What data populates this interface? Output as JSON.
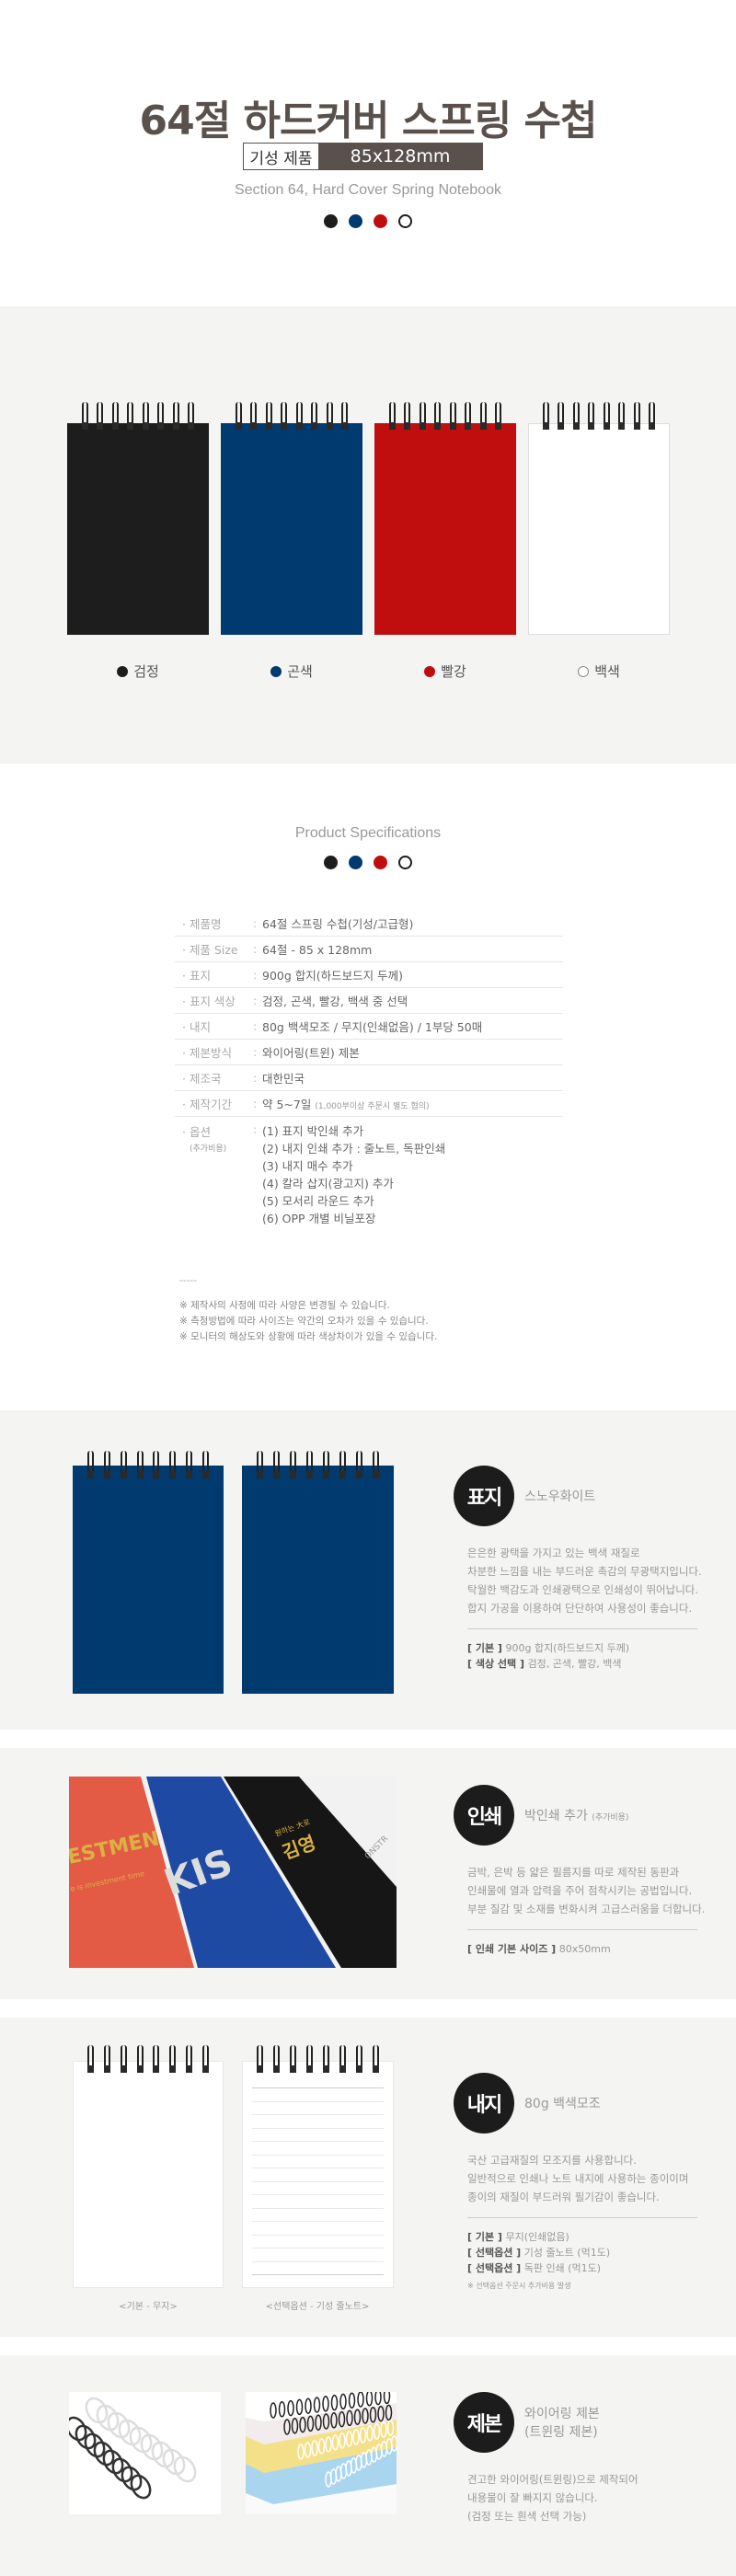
{
  "header": {
    "title": "64절 하드커버 스프링 수첩",
    "badge_type": "기성 제품",
    "badge_size": "85x128mm",
    "subtitle": "Section 64, Hard Cover Spring Notebook"
  },
  "colors": {
    "black": "#1d1d1d",
    "navy": "#003a6e",
    "red": "#c00d0e",
    "white": "#ffffff",
    "title": "#5a514d"
  },
  "color_options": [
    {
      "label": "검정",
      "color": "#1d1d1d"
    },
    {
      "label": "곤색",
      "color": "#003a6e"
    },
    {
      "label": "빨강",
      "color": "#c00d0e"
    },
    {
      "label": "백색",
      "color": "#ffffff"
    }
  ],
  "specs": {
    "title": "Product Specifications",
    "rows": [
      {
        "key": "제품명",
        "value": "64절 스프링 수첩(기성/고급형)"
      },
      {
        "key": "제품 Size",
        "value": "64절 - 85 x 128mm"
      },
      {
        "key": "표지",
        "value": "900g 합지(하드보드지 두께)"
      },
      {
        "key": "표지 색상",
        "value": "검정, 곤색, 빨강, 백색 중 선택"
      },
      {
        "key": "내지",
        "value": "80g 백색모조 / 무지(인쇄없음) / 1부당 50매"
      },
      {
        "key": "제본방식",
        "value": "와이어링(트윈) 제본"
      },
      {
        "key": "제조국",
        "value": "대한민국"
      },
      {
        "key": "제작기간",
        "value": "약 5~7일",
        "note": "(1,000부이상 주문시 별도 협의)"
      }
    ],
    "options_key": "옵션",
    "options_note": "(추가비용)",
    "options": [
      "(1) 표지 박인쇄 추가",
      "(2) 내지 인쇄 추가 : 줄노트, 독판인쇄",
      "(3) 내지 매수 추가",
      "(4) 칼라 삽지(광고지) 추가",
      "(5) 모서리 라운드 추가",
      "(6) OPP 개별 비닐포장"
    ],
    "dash": "-----",
    "notes": [
      "※ 제작사의 사정에 따라 사양은 변경될 수 있습니다.",
      "※ 측정방법에 따라 사이즈는 약간의 오차가 있을 수 있습니다.",
      "※ 모니터의 해상도와 상황에 따라 색상차이가 있을 수 있습니다."
    ]
  },
  "cover": {
    "badge": "표지",
    "heading": "스노우화이트",
    "body": [
      "은은한 광택을 가지고 있는 백색 재질로",
      "차분한 느낌을 내는 부드러운 촉감의 무광택지입니다.",
      "탁월한 백감도과 인쇄광택으로 인쇄성이 뛰어납니다.",
      "합지 가공을 이용하여 단단하여 사용성이 좋습니다."
    ],
    "opts": [
      {
        "k": "[ 기본 ]",
        "v": "900g 합지(하드보드지 두께)"
      },
      {
        "k": "[ 색상 선택 ]",
        "v": "검정, 곤색, 빨강, 백색"
      }
    ]
  },
  "print": {
    "badge": "인쇄",
    "heading": "박인쇄 추가",
    "heading_note": "(추가비용)",
    "body": [
      "금박, 은박 등 얇은 필름지를 따로 제작된 동판과",
      "인쇄물에 열과 압력을 주어 점착시키는 공법입니다.",
      "부분 질감 및 소재를 변화시켜 고급스러움을 더합니다."
    ],
    "opts": [
      {
        "k": "[ 인쇄 기본 사이즈 ]",
        "v": "80x50mm"
      }
    ],
    "photo_text": [
      "ESTMEN",
      "e is investment time",
      "KIS",
      "원하는 大로",
      "김영",
      "ONSTR"
    ]
  },
  "inner": {
    "badge": "내지",
    "heading": "80g 백색모조",
    "body": [
      "국산 고급재질의 모조지를 사용합니다.",
      "일반적으로 인쇄나 노트 내지에 사용하는 종이이며",
      "종이의 재질이 부드러워 필기감이 좋습니다."
    ],
    "opts": [
      {
        "k": "[ 기본 ]",
        "v": "무지(인쇄없음)"
      },
      {
        "k": "[ 선택옵션 ]",
        "v": "기성 줄노트 (먹1도)"
      },
      {
        "k": "[ 선택옵션 ]",
        "v": "독판 인쇄 (먹1도)"
      }
    ],
    "footnote": "※ 선택옵션 주문시 추가비용 발생",
    "captions": [
      "<기본 - 무지>",
      "<선택옵션 - 기성 줄노트>"
    ]
  },
  "binding": {
    "badge": "제본",
    "heading": "와이어링 제본",
    "heading2": "(트윈링 제본)",
    "body": [
      "견고한 와이어링(트윈링)으로 제작되어",
      "내용물이 잘 빠지지 않습니다.",
      "(검정 또는 흰색 선택 가능)"
    ]
  }
}
